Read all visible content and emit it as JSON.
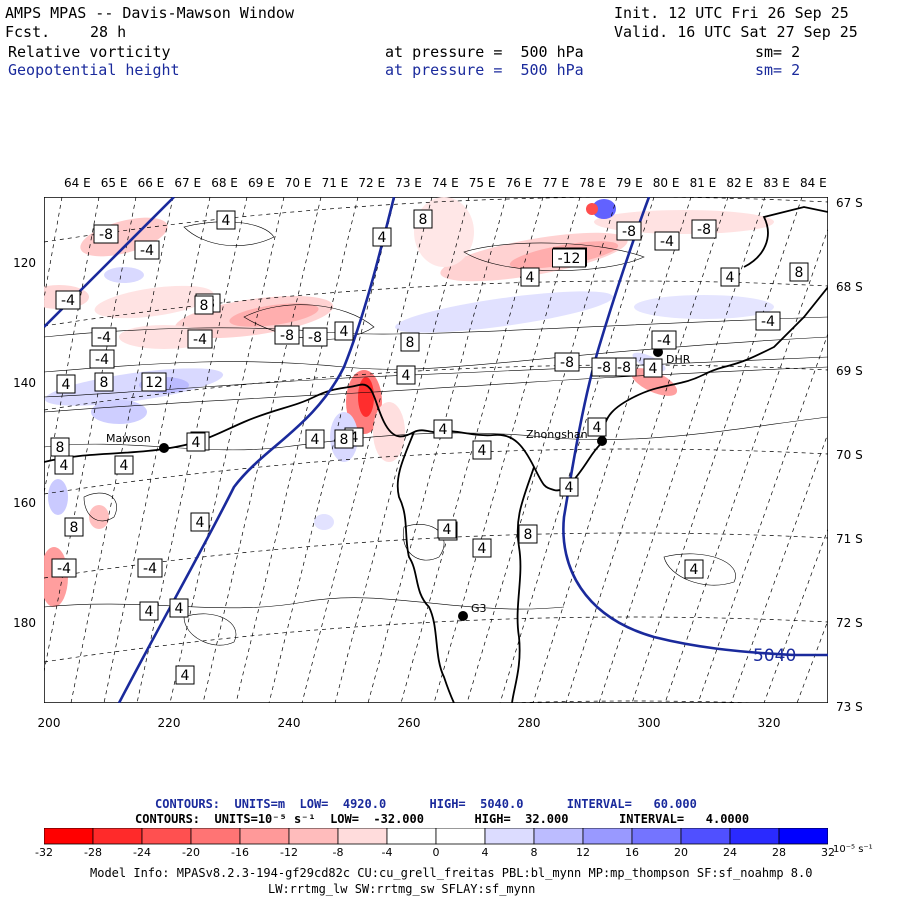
{
  "header": {
    "title": "AMPS MPAS -- Davis-Mawson Window",
    "fcst_label": "Fcst.",
    "fcst_value": "28 h",
    "init": "Init. 12 UTC Fri 26 Sep 25",
    "valid": "Valid. 16 UTC Sat 27 Sep 25",
    "field1": {
      "name": "Relative vorticity",
      "pressure": "at pressure =  500 hPa",
      "sm": "sm= 2"
    },
    "field2": {
      "name": "Geopotential height",
      "pressure": "at pressure =  500 hPa",
      "sm": "sm= 2"
    }
  },
  "axes": {
    "lon_labels": [
      "64 E",
      "65 E",
      "66 E",
      "67 E",
      "68 E",
      "69 E",
      "70 E",
      "71 E",
      "72 E",
      "73 E",
      "74 E",
      "75 E",
      "76 E",
      "77 E",
      "78 E",
      "79 E",
      "80 E",
      "81 E",
      "82 E",
      "83 E",
      "84 E"
    ],
    "lat_labels": [
      "67 S",
      "68 S",
      "69 S",
      "70 S",
      "71 S",
      "72 S",
      "73 S"
    ],
    "y_ticks": [
      "120",
      "140",
      "160",
      "180"
    ],
    "x_ticks": [
      "200",
      "220",
      "240",
      "260",
      "280",
      "300",
      "320"
    ]
  },
  "stations": [
    {
      "name": "Mawson"
    },
    {
      "name": "Zhongshan"
    },
    {
      "name": "G3"
    },
    {
      "name": "DHR"
    }
  ],
  "contour_labels": [
    "-8",
    "-4",
    "4",
    "8",
    "-12",
    "12",
    "-8",
    "4",
    "8",
    "4",
    "4",
    "-8",
    "-4",
    "-4",
    "4",
    "8",
    "4",
    "8",
    "4",
    "4",
    "-4",
    "8",
    "4",
    "4",
    "4",
    "4",
    "4",
    "-4",
    "8",
    "-12",
    "-8",
    "-4",
    "-8",
    "4",
    "-4",
    "8",
    "-8",
    "-8",
    "4",
    "8",
    "4",
    "4",
    "4",
    "4",
    "4",
    "4",
    "-4",
    "4",
    "4",
    "4",
    "4",
    "-8",
    "-4",
    "8",
    "-8",
    "4",
    "-4"
  ],
  "height_label": "5040",
  "colors": {
    "ocean": "#ffffff",
    "height_contour": "#1a2a9c",
    "coast": "#000000"
  },
  "footer": {
    "contours1": "CONTOURS:  UNITS=m  LOW=  4920.0      HIGH=  5040.0      INTERVAL=   60.000",
    "contours2": "CONTOURS:  UNITS=10⁻⁵ s⁻¹  LOW=  -32.000       HIGH=  32.000       INTERVAL=   4.0000",
    "colorbar_ticks": [
      "-32",
      "-28",
      "-24",
      "-20",
      "-16",
      "-12",
      "-8",
      "-4",
      "0",
      "4",
      "8",
      "12",
      "16",
      "20",
      "24",
      "28",
      "32"
    ],
    "colorbar_unit": "10⁻⁵ s⁻¹",
    "colorbar_colors": [
      "#ff0000",
      "#ff2a2a",
      "#ff5050",
      "#ff7474",
      "#ff9999",
      "#ffbcbc",
      "#ffdcdc",
      "#ffffff",
      "#ffffff",
      "#dcdcff",
      "#bcbcff",
      "#9999ff",
      "#7474ff",
      "#5050ff",
      "#2a2aff",
      "#0000ff"
    ],
    "model_info": "Model Info: MPASv8.2.3-194-gf29cd82c CU:cu_grell_freitas PBL:bl_mynn MP:mp_thompson SF:sf_noahmp 8.0",
    "model_info2": "LW:rrtmg_lw SW:rrtmg_sw SFLAY:sf_mynn"
  }
}
